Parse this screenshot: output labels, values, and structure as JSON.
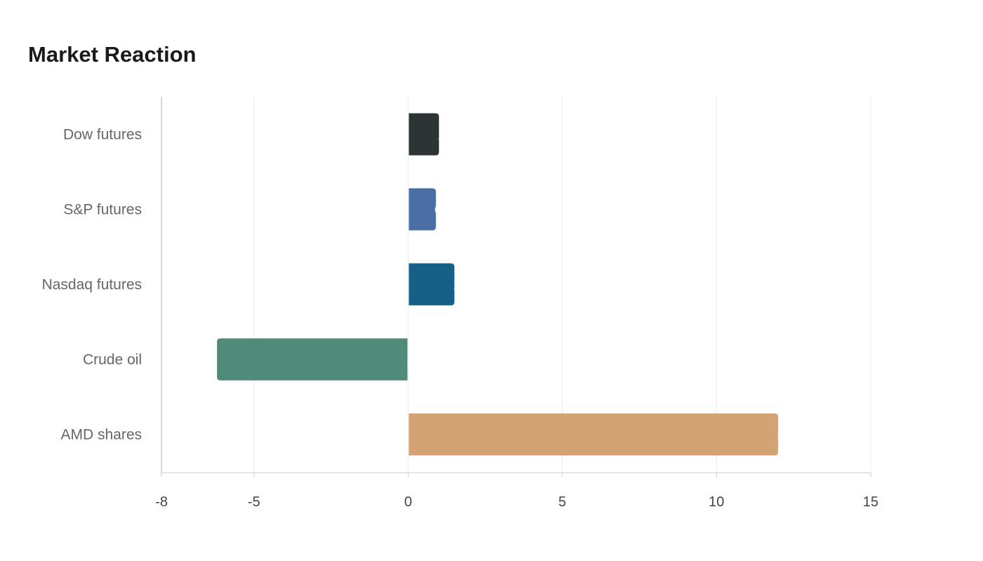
{
  "chart_data": {
    "type": "bar",
    "orientation": "horizontal",
    "title": "Market Reaction",
    "xlabel": "",
    "ylabel": "",
    "categories": [
      "Dow futures",
      "S&P futures",
      "Nasdaq futures",
      "Crude oil",
      "AMD shares"
    ],
    "values": [
      1.0,
      0.9,
      1.5,
      -6.2,
      12.0
    ],
    "colors": [
      "#2d3436",
      "#4a6fa5",
      "#166088",
      "#4f8a7b",
      "#d4a373"
    ],
    "xlim": [
      -8,
      15
    ],
    "xticks": [
      -8,
      -5,
      0,
      5,
      10,
      15
    ],
    "grid": true,
    "legend": "none"
  }
}
